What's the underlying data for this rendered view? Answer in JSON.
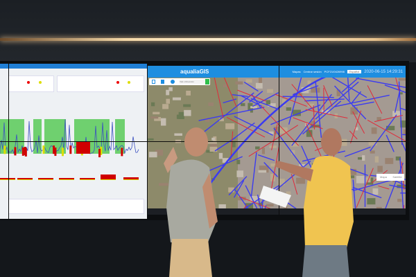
{
  "gis": {
    "logo": "aqualiaGIS",
    "menu": [
      "Mapas",
      "Centrar sesión",
      "PCF21/0426998"
    ],
    "language": "Español",
    "datetime": "2020-06-15 14:29:31",
    "search_placeholder": "Vial o Dirección",
    "map_types": [
      "Mapa",
      "Satélite"
    ]
  },
  "colors": {
    "gis_header": "#1e8ee0",
    "road_primary": "#3b3bf0",
    "road_secondary": "#e02a3a",
    "chart_green": "#6fd06f",
    "chart_red": "#d00000",
    "chart_blue": "#3a4fc0"
  },
  "icons": [
    "layers-icon",
    "calendar-icon",
    "info-icon",
    "search-icon",
    "user-icon",
    "pegman-icon",
    "zoom-in-icon"
  ]
}
